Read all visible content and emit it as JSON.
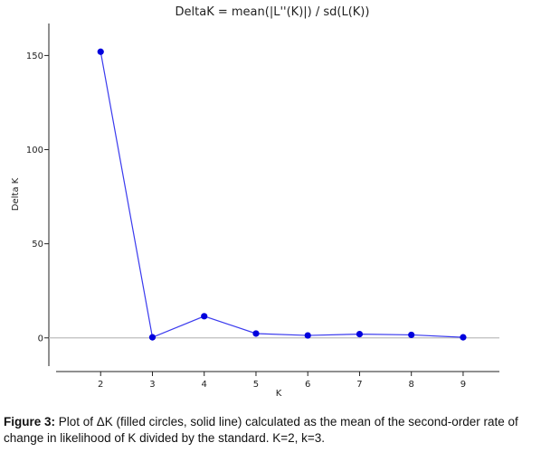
{
  "chart_data": {
    "type": "line",
    "title": "DeltaK = mean(|L''(K)|) / sd(L(K))",
    "xlabel": "K",
    "ylabel": "Delta K",
    "x": [
      2,
      3,
      4,
      5,
      6,
      7,
      8,
      9
    ],
    "values": [
      152,
      0.3,
      11.5,
      2.3,
      1.3,
      2.0,
      1.6,
      0.3
    ],
    "xticks": [
      "2",
      "3",
      "4",
      "5",
      "6",
      "7",
      "8",
      "9"
    ],
    "yticks": [
      "0",
      "50",
      "100",
      "150"
    ],
    "xlim": [
      1.0,
      9.7
    ],
    "ylim": [
      -15,
      167
    ],
    "color": "#3a3aee",
    "marker_color": "#0000dd",
    "zero_line": true,
    "grid": false
  },
  "caption": {
    "label": "Figure 3:",
    "text": " Plot of ΔK (filled circles, solid line) calculated as the mean of the second-order rate of change in likelihood of K divided by the standard. K=2, k=3."
  }
}
